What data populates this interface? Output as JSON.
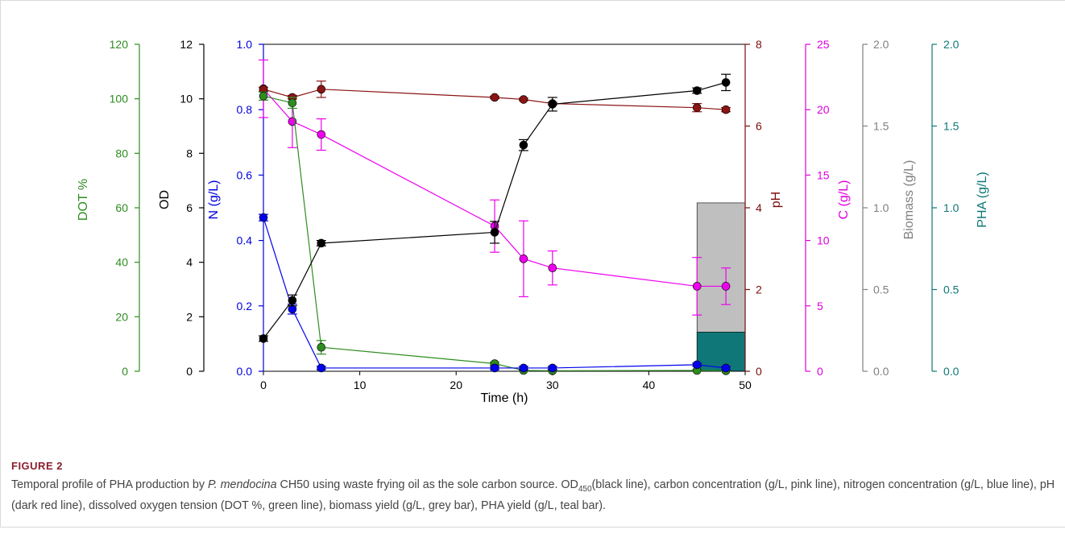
{
  "chart_data": {
    "type": "line",
    "xlabel": "Time (h)",
    "xlim": [
      0,
      50
    ],
    "xticks": [
      "0",
      "10",
      "20",
      "30",
      "40",
      "50"
    ],
    "axes": [
      {
        "key": "dot",
        "label": "DOT %",
        "color": "#2f8c20",
        "range": [
          0,
          120
        ],
        "ticks": [
          "0",
          "20",
          "40",
          "60",
          "80",
          "100",
          "120"
        ]
      },
      {
        "key": "od",
        "label": "OD",
        "color": "#000000",
        "range": [
          0,
          12
        ],
        "ticks": [
          "0",
          "2",
          "4",
          "6",
          "8",
          "10",
          "12"
        ]
      },
      {
        "key": "n",
        "label": "N (g/L)",
        "color": "#0000dd",
        "range": [
          0,
          1
        ],
        "ticks": [
          "0.0",
          "0.2",
          "0.4",
          "0.6",
          "0.8",
          "1.0"
        ]
      },
      {
        "key": "ph",
        "label": "pH",
        "color": "#7a0c0c",
        "range": [
          0,
          8
        ],
        "ticks": [
          "0",
          "2",
          "4",
          "6",
          "8"
        ]
      },
      {
        "key": "c",
        "label": "C (g/L)",
        "color": "#e000e0",
        "range": [
          0,
          25
        ],
        "ticks": [
          "0",
          "5",
          "10",
          "15",
          "20",
          "25"
        ]
      },
      {
        "key": "biomass",
        "label": "Biomass (g/L)",
        "color": "#808080",
        "range": [
          0,
          2
        ],
        "ticks": [
          "0.0",
          "0.5",
          "1.0",
          "1.5",
          "2.0"
        ]
      },
      {
        "key": "pha",
        "label": "PHA (g/L)",
        "color": "#0f7777",
        "range": [
          0,
          2
        ],
        "ticks": [
          "0.0",
          "0.5",
          "1.0",
          "1.5",
          "2.0"
        ]
      }
    ],
    "series": [
      {
        "key": "c",
        "color": "#ee00ee",
        "x": [
          0,
          3,
          6,
          24,
          27,
          30,
          45,
          48
        ],
        "y": [
          21.6,
          19.1,
          18.1,
          11.1,
          8.6,
          7.9,
          6.5,
          6.5
        ],
        "err": [
          2.2,
          2.0,
          1.2,
          2.0,
          2.9,
          1.3,
          2.2,
          1.4
        ]
      },
      {
        "key": "ph",
        "color": "#8b1414",
        "x": [
          0,
          3,
          6,
          24,
          27,
          30,
          45,
          48
        ],
        "y": [
          6.9,
          6.7,
          6.9,
          6.7,
          6.65,
          6.55,
          6.45,
          6.4
        ],
        "err": [
          0.05,
          0.04,
          0.2,
          0.03,
          0.03,
          0.03,
          0.1,
          0.05
        ]
      },
      {
        "key": "dot",
        "color": "#2f8c20",
        "x": [
          0,
          3,
          6,
          24,
          27,
          30,
          45,
          48
        ],
        "y": [
          101,
          98.5,
          8.8,
          2.8,
          0.3,
          0.2,
          0.3,
          0.2
        ],
        "err": [
          1.5,
          2.0,
          2.5,
          0.5,
          0.2,
          0.2,
          0.2,
          0.2
        ]
      },
      {
        "key": "n",
        "color": "#0000ee",
        "x": [
          0,
          3,
          6,
          24,
          27,
          30,
          45,
          48
        ],
        "y": [
          0.47,
          0.19,
          0.01,
          0.01,
          0.01,
          0.01,
          0.02,
          0.01
        ],
        "err": [
          0.01,
          0.015,
          0.005,
          0.005,
          0.005,
          0.005,
          0.005,
          0.005
        ]
      },
      {
        "key": "od",
        "color": "#000000",
        "x": [
          0,
          3,
          6,
          24,
          27,
          30,
          45,
          48
        ],
        "y": [
          1.2,
          2.6,
          4.7,
          5.1,
          8.3,
          9.8,
          10.3,
          10.6
        ],
        "err": [
          0.1,
          0.2,
          0.1,
          0.4,
          0.2,
          0.25,
          0.1,
          0.3
        ]
      }
    ],
    "bars": [
      {
        "key": "biomass",
        "color": "#bfbfbf",
        "x_from": 45,
        "x_to": 50,
        "value": 1.03
      },
      {
        "key": "pha",
        "color": "#0f7777",
        "x_from": 45,
        "x_to": 50,
        "value": 0.24
      }
    ]
  },
  "figure": {
    "label": "FIGURE 2",
    "caption_1": "Temporal profile of PHA production by ",
    "caption_species": "P. mendocina",
    "caption_2": " CH50 using waste frying oil as the sole carbon source. OD",
    "caption_sub": "450",
    "caption_3": "(black line), carbon concentration (g/L, pink line), nitrogen concentration (g/L, blue line), pH (dark red line), dissolved oxygen tension (DOT %, green line), biomass yield (g/L, grey bar), PHA yield (g/L, teal bar)."
  }
}
